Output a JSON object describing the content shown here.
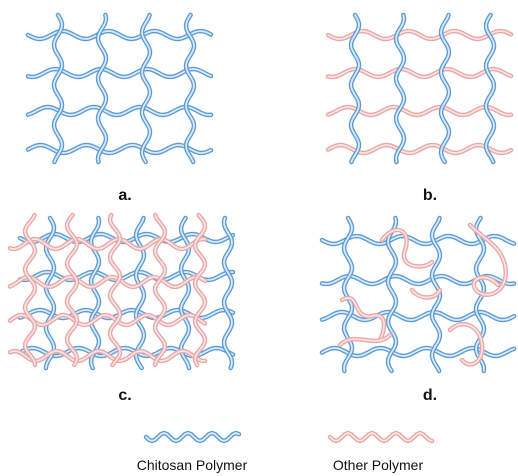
{
  "panels": [
    {
      "label": "a."
    },
    {
      "label": "b."
    },
    {
      "label": "c."
    },
    {
      "label": "d."
    }
  ],
  "legend": [
    {
      "label": "Chitosan Polymer"
    },
    {
      "label": "Other Polymer"
    }
  ]
}
